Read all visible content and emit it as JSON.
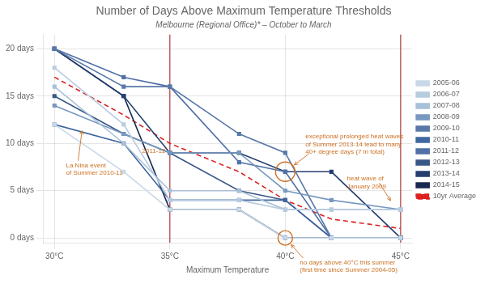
{
  "chart_data": {
    "type": "line",
    "title": "Number of Days Above Maximum Temperature Thresholds",
    "subtitle": "Melbourne (Regional Office)* – October to March",
    "xlabel": "Maximum Temperature",
    "x": [
      30,
      33,
      35,
      38,
      40,
      42,
      45
    ],
    "xlim": [
      29.5,
      45.5
    ],
    "xticks": [
      {
        "value": 30,
        "label": "30°C"
      },
      {
        "value": 35,
        "label": "35°C"
      },
      {
        "value": 40,
        "label": "40°C"
      },
      {
        "value": 45,
        "label": "45°C"
      }
    ],
    "ylim": [
      -0.5,
      21.5
    ],
    "yticks": [
      {
        "value": 0,
        "label": "0 days"
      },
      {
        "value": 5,
        "label": "5 days"
      },
      {
        "value": 10,
        "label": "10 days"
      },
      {
        "value": 15,
        "label": "15 days"
      },
      {
        "value": 20,
        "label": "20 days"
      }
    ],
    "grid": true,
    "legend": "right",
    "series": [
      {
        "name": "2005-06",
        "color": "#c8d8e8",
        "marker": "square",
        "line_style": "solid",
        "values": [
          12,
          7,
          3,
          3,
          0,
          0,
          0
        ]
      },
      {
        "name": "2006-07",
        "color": "#b8cce0",
        "marker": "square",
        "line_style": "solid",
        "values": [
          18,
          12,
          4,
          4,
          3,
          3,
          3
        ]
      },
      {
        "name": "2007-08",
        "color": "#a8c0d8",
        "marker": "square",
        "line_style": "solid",
        "values": [
          16,
          10,
          5,
          5,
          3,
          3,
          3
        ]
      },
      {
        "name": "2008-09",
        "color": "#7898c0",
        "marker": "square",
        "line_style": "solid",
        "values": [
          14,
          11,
          9,
          9,
          5,
          4,
          3
        ]
      },
      {
        "name": "2009-10",
        "color": "#5878a8",
        "marker": "square",
        "line_style": "solid",
        "values": [
          20,
          16,
          16,
          11,
          9,
          0,
          0
        ]
      },
      {
        "name": "2010-11",
        "color": "#4068a0",
        "marker": "square",
        "line_style": "solid",
        "values": [
          12,
          10,
          4,
          4,
          4,
          0,
          0
        ]
      },
      {
        "name": "2011-12",
        "color": "#5070a8",
        "marker": "square",
        "line_style": "solid",
        "values": [
          20,
          17,
          16,
          8,
          7,
          0,
          0
        ]
      },
      {
        "name": "2012-13",
        "color": "#385888",
        "marker": "square",
        "line_style": "solid",
        "values": [
          15,
          11,
          9,
          5,
          4,
          0,
          0
        ]
      },
      {
        "name": "2013-14",
        "color": "#243e70",
        "marker": "square",
        "line_style": "solid",
        "values": [
          20,
          15,
          9,
          9,
          7,
          7,
          0
        ]
      },
      {
        "name": "2014-15",
        "color": "#182850",
        "marker": "square",
        "line_style": "solid",
        "values": [
          20,
          15,
          3,
          3,
          0,
          0,
          0
        ]
      },
      {
        "name": "10yr Average",
        "color": "#dd2020",
        "marker": "none",
        "line_style": "dashed",
        "values": [
          17,
          13,
          10,
          7,
          4,
          2,
          1
        ]
      }
    ],
    "reference_lines": {
      "x": [
        35,
        45
      ],
      "color": "#b04040"
    },
    "annotations": [
      {
        "text": "La Nina event\nof Summer 2010-11",
        "x": 31.2,
        "y": 11.5,
        "color": "#cc7020",
        "arrow": true,
        "circle": false
      },
      {
        "text": "2011-12",
        "x": 33.8,
        "y": 9.2,
        "color": "#cc7020",
        "arrow": false,
        "circle": false
      },
      {
        "text": "exceptional prolonged heat waves\nof Summer 2013-14 lead to many\n40+ degree days (7 in total)",
        "x": 40,
        "y": 7,
        "color": "#cc7020",
        "arrow": true,
        "circle": true
      },
      {
        "text": "heat wave of\nJanuary 2009",
        "x": 44.6,
        "y": 3.8,
        "color": "#cc7020",
        "arrow": true,
        "circle": false
      },
      {
        "text": "no days above 40°C this summer\n(first time since Summer 2004-05)",
        "x": 40,
        "y": 0,
        "color": "#cc7020",
        "arrow": true,
        "circle": true
      }
    ]
  }
}
